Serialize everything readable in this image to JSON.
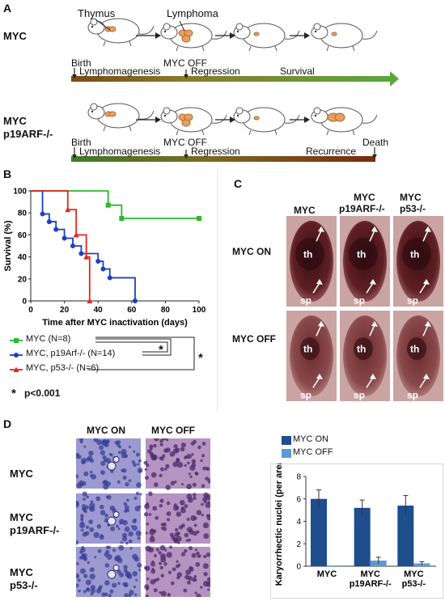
{
  "panelA": {
    "letter": "A",
    "row1": {
      "label": "MYC",
      "callout_thymus": "Thymus",
      "callout_lymphoma": "Lymphoma",
      "timeline_top": [
        "Birth",
        "MYC  OFF"
      ],
      "timeline_bottom": [
        "Lymphomagenesis",
        "Regression",
        "Survival"
      ]
    },
    "row2": {
      "label_line1": "MYC",
      "label_line2": "p19ARF-/-",
      "timeline_top": [
        "Birth",
        "MYC  OFF",
        "Death"
      ],
      "timeline_bottom": [
        "Lymphomagenesis",
        "Regression",
        "Recurrence"
      ]
    }
  },
  "panelB": {
    "letter": "B",
    "significance_note": "p<0.001",
    "star": "*",
    "chart_data": {
      "type": "line",
      "step": true,
      "ylabel": "Survival (%)",
      "xlabel": "Time after MYC inactivation (days)",
      "xlim": [
        0,
        100
      ],
      "ylim": [
        0,
        100
      ],
      "xticks": [
        "0",
        "20",
        "40",
        "60",
        "80",
        "100"
      ],
      "yticks": [
        "0",
        "20",
        "40",
        "60",
        "80",
        "100"
      ],
      "series": [
        {
          "name": "MYC (N=8)",
          "color": "#2db82d",
          "marker": "square",
          "x": [
            0,
            46,
            54,
            100
          ],
          "y": [
            100,
            87,
            75,
            75
          ]
        },
        {
          "name": "MYC, p19Arf-/- (N=14)",
          "color": "#1f3fbf",
          "marker": "circle",
          "x": [
            0,
            7,
            11,
            15,
            20,
            25,
            30,
            40,
            43,
            47,
            62
          ],
          "y": [
            100,
            79,
            72,
            65,
            57,
            50,
            43,
            36,
            29,
            21,
            0
          ]
        },
        {
          "name": "MYC, p53-/- (N=6)",
          "color": "#e3261d",
          "marker": "triangle",
          "x": [
            0,
            22,
            27,
            33,
            35
          ],
          "y": [
            100,
            83,
            60,
            40,
            0
          ]
        }
      ]
    }
  },
  "panelC": {
    "letter": "C",
    "columns": [
      {
        "l1": "MYC",
        "l2": ""
      },
      {
        "l1": "MYC",
        "l2": "p19ARF-/-"
      },
      {
        "l1": "MYC",
        "l2": "p53-/-"
      }
    ],
    "rows": [
      "MYC ON",
      "MYC OFF"
    ],
    "organ_th": "th",
    "organ_sp": "sp"
  },
  "panelD": {
    "letter": "D",
    "columns": [
      "MYC ON",
      "MYC OFF"
    ],
    "rows": [
      {
        "l1": "MYC",
        "l2": ""
      },
      {
        "l1": "MYC",
        "l2": "p19ARF-/-"
      },
      {
        "l1": "MYC",
        "l2": "p53-/-"
      }
    ],
    "chart_data": {
      "type": "bar",
      "ylabel": "Karyorrhectic nuclei (per area)",
      "ylim": [
        0,
        8
      ],
      "yticks": [
        "0",
        "2",
        "4",
        "6",
        "8"
      ],
      "categories": [
        "MYC",
        "MYC p19ARF-/-",
        "MYC p53-/-"
      ],
      "category_lines": [
        [
          "MYC",
          ""
        ],
        [
          "MYC",
          "p19ARF-/-"
        ],
        [
          "MYC",
          "p53-/-"
        ]
      ],
      "series": [
        {
          "name": "MYC ON",
          "color": "#1f4e8c",
          "values": [
            6.0,
            5.2,
            5.4
          ],
          "errors": [
            0.8,
            0.7,
            0.9
          ]
        },
        {
          "name": "MYC OFF",
          "color": "#5b9bd5",
          "values": [
            0.0,
            0.5,
            0.25
          ],
          "errors": [
            0.0,
            0.3,
            0.15
          ]
        }
      ]
    }
  }
}
